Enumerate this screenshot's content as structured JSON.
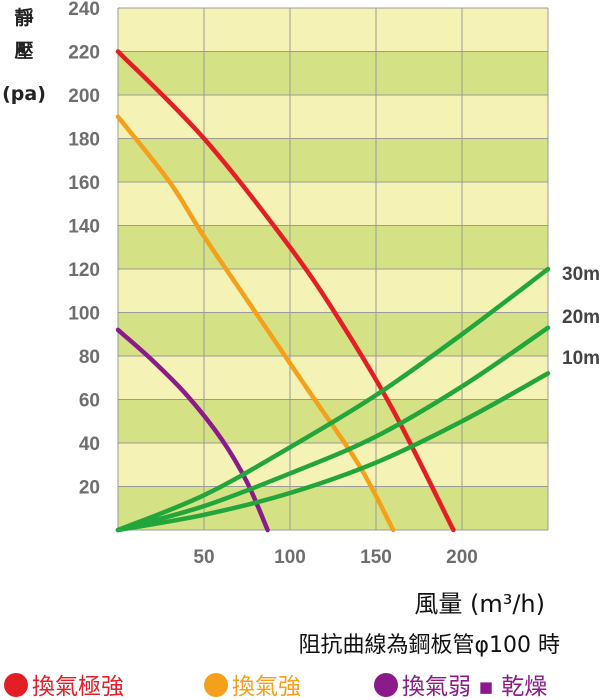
{
  "chart_data": {
    "type": "line",
    "ylabel_lines": [
      "靜",
      "壓",
      "(pa)"
    ],
    "xlabel": "風量 (m³/h)",
    "note": "阻抗曲線為鋼板管φ100 時",
    "xlim": [
      0,
      250
    ],
    "ylim": [
      0,
      240
    ],
    "x_ticks": [
      "50",
      "100",
      "150",
      "200"
    ],
    "y_ticks": [
      "20",
      "40",
      "60",
      "80",
      "100",
      "120",
      "140",
      "160",
      "180",
      "200",
      "220",
      "240"
    ],
    "grid": true,
    "series": [
      {
        "name": "換氣極強",
        "color": "#e31e24",
        "kind": "fan",
        "x": [
          0,
          50,
          100,
          130,
          160,
          195
        ],
        "y": [
          220,
          180,
          130,
          95,
          55,
          0
        ]
      },
      {
        "name": "換氣強",
        "color": "#f5a01a",
        "kind": "fan",
        "x": [
          0,
          30,
          50,
          80,
          110,
          140,
          160
        ],
        "y": [
          190,
          160,
          135,
          100,
          65,
          30,
          0
        ]
      },
      {
        "name": "換氣弱 ▪ 乾燥",
        "color": "#8b1a8b",
        "kind": "fan",
        "x": [
          0,
          20,
          40,
          60,
          75,
          87
        ],
        "y": [
          92,
          78,
          62,
          42,
          22,
          0
        ]
      },
      {
        "name": "30m",
        "color": "#22a53a",
        "kind": "duct",
        "x": [
          0,
          50,
          100,
          150,
          200,
          250
        ],
        "y": [
          0,
          16,
          38,
          62,
          90,
          120
        ]
      },
      {
        "name": "20m",
        "color": "#22a53a",
        "kind": "duct",
        "x": [
          0,
          50,
          100,
          150,
          200,
          250
        ],
        "y": [
          0,
          11,
          26,
          43,
          66,
          93
        ]
      },
      {
        "name": "10m",
        "color": "#22a53a",
        "kind": "duct",
        "x": [
          0,
          50,
          100,
          150,
          200,
          250
        ],
        "y": [
          0,
          7,
          17,
          31,
          50,
          72
        ]
      }
    ],
    "curve_labels": [
      "30m",
      "20m",
      "10m"
    ],
    "legend": [
      {
        "label": "換氣極強",
        "color": "#e31e24"
      },
      {
        "label": "換氣強",
        "color": "#f5a01a"
      },
      {
        "label": "換氣弱 ▪ 乾燥",
        "color": "#8b1a8b"
      }
    ],
    "band_colors": [
      "#d4e184",
      "#f4f2b4"
    ],
    "grid_color": "#9a9a9a"
  }
}
